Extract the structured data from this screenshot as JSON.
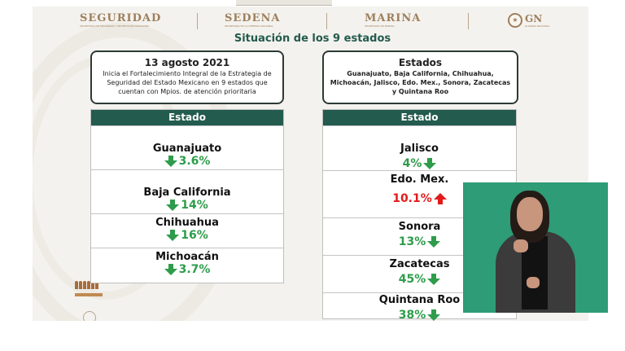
{
  "header": {
    "institutions": [
      {
        "name": "SEGURIDAD",
        "sub": "SECRETARÍA DE SEGURIDAD Y PROTECCIÓN CIUDADANA"
      },
      {
        "name": "SEDENA",
        "sub": "SECRETARÍA DE LA DEFENSA NACIONAL"
      },
      {
        "name": "MARINA",
        "sub": "SECRETARÍA DE MARINA"
      }
    ],
    "gn_label": "GN",
    "gn_sub": "GUARDIA NACIONAL"
  },
  "title": "Situación de los 9 estados",
  "left_box": {
    "heading": "13 agosto 2021",
    "body": "Inicia el Fortalecimiento Integral de la Estrategia de Seguridad del Estado Mexicano en 9 estados que cuentan con Mpios. de atención prioritaria"
  },
  "right_box": {
    "heading": "Estados",
    "body": "Guanajuato, Baja California, Chihuahua, Michoacán, Jalisco, Edo. Mex., Sonora, Zacatecas y Quintana Roo"
  },
  "left_table": {
    "header": "Estado",
    "rows": [
      {
        "state": "Guanajuato",
        "value": "3.6%",
        "trend": "down"
      },
      {
        "state": "Baja California",
        "value": "14%",
        "trend": "down"
      },
      {
        "state": "Chihuahua",
        "value": "16%",
        "trend": "down"
      },
      {
        "state": "Michoacán",
        "value": "3.7%",
        "trend": "down"
      }
    ]
  },
  "right_table": {
    "header": "Estado",
    "rows": [
      {
        "state": "Jalisco",
        "value": "4%",
        "trend": "down"
      },
      {
        "state": "Edo. Mex.",
        "value": "10.1%",
        "trend": "up"
      },
      {
        "state": "Sonora",
        "value": "13%",
        "trend": "down"
      },
      {
        "state": "Zacatecas",
        "value": "45%",
        "trend": "down"
      },
      {
        "state": "Quintana Roo",
        "value": "38%",
        "trend": "down"
      }
    ]
  },
  "colors": {
    "header_green": "#235b4e",
    "down_green": "#2e9c4b",
    "up_red": "#e11b1b",
    "gold": "#9e7f5c"
  }
}
